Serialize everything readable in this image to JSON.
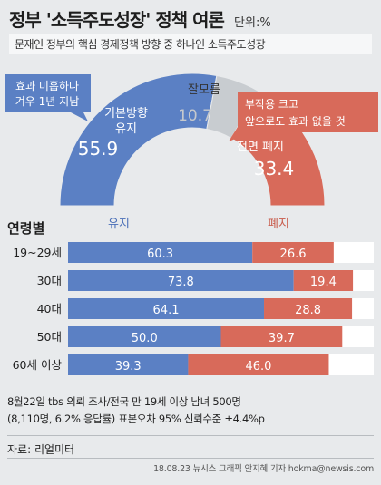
{
  "header": {
    "title": "정부 '소득주도성장' 정책 여론",
    "unit": "단위:%",
    "subtitle": "문재인 정부의 핵심 경제정책 방향 중 하나인 소득주도성장"
  },
  "colors": {
    "keep": "#5b80c4",
    "abolish": "#d86a5a",
    "unknown": "#c8ccd0",
    "keep_text": "#4a6fb8",
    "abolish_text": "#c85a4a"
  },
  "chart_data": [
    {
      "type": "pie",
      "style": "half-donut",
      "slices": [
        {
          "label": "기본방향 유지",
          "value": 55.9,
          "color": "#5b80c4"
        },
        {
          "label": "잘모름",
          "value": 10.7,
          "color": "#c8ccd0"
        },
        {
          "label": "전면 폐지",
          "value": 33.4,
          "color": "#d86a5a"
        }
      ],
      "callouts": {
        "keep": [
          "효과 미흡하나",
          "겨우 1년 지남"
        ],
        "abolish": [
          "부작용 크고",
          "앞으로도 효과 없을 것"
        ]
      }
    },
    {
      "type": "bar",
      "stacked": true,
      "orientation": "horizontal",
      "title": "연령별",
      "categories": [
        "19~29세",
        "30대",
        "40대",
        "50대",
        "60세 이상"
      ],
      "series": [
        {
          "name": "유지",
          "values": [
            60.3,
            73.8,
            64.1,
            50.0,
            39.3
          ],
          "color": "#5b80c4"
        },
        {
          "name": "폐지",
          "values": [
            26.6,
            19.4,
            28.8,
            39.7,
            46.0
          ],
          "color": "#d86a5a"
        }
      ],
      "xlim": [
        0,
        100
      ]
    }
  ],
  "footer": {
    "note_line1": "8월22일 tbs 의뢰 조사/전국 만 19세 이상 남녀 500명",
    "note_line2": "(8,110명, 6.2% 응답률) 표본오차 95% 신뢰수준 ±4.4%p",
    "source": "자료: 리얼미터",
    "credit": "18.08.23  뉴시스 그래픽 안지혜 기자  hokma@newsis.com"
  }
}
